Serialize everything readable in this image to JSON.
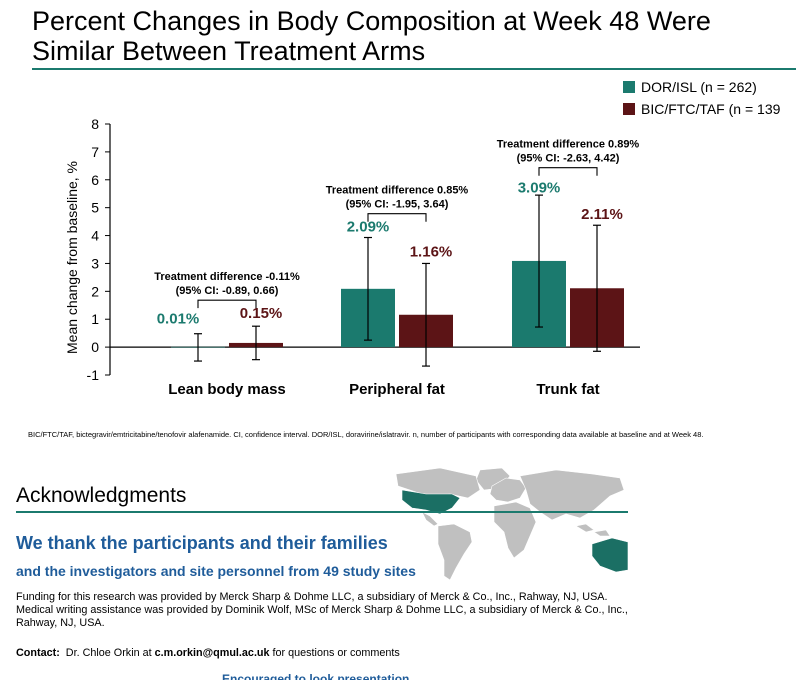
{
  "slide": {
    "title": "Percent Changes in Body Composition at Week 48 Were Similar Between Treatment Arms",
    "footnote": "BIC/FTC/TAF, bictegravir/emtricitabine/tenofovir alafenamide. CI, confidence interval. DOR/ISL, doravirine/islatravir. n, number of participants with corresponding data available at baseline and at Week 48."
  },
  "colors": {
    "teal": "#1b7a6e",
    "maroon": "#5c1416",
    "rule": "#1b7a6e",
    "blue_text": "#1f5c9a",
    "map_land": "#c0c0c0",
    "map_highlight": "#1b6f64"
  },
  "chart_data": {
    "type": "bar",
    "categories": [
      "Lean body mass",
      "Peripheral fat",
      "Trunk fat"
    ],
    "ylabel": "Mean change from baseline, %",
    "xlabel": "",
    "ylim": [
      -1,
      8
    ],
    "yticks": [
      -1,
      0,
      1,
      2,
      3,
      4,
      5,
      6,
      7,
      8
    ],
    "grid": false,
    "legend_position": "top-right",
    "series": [
      {
        "name": "DOR/ISL (n = 262)",
        "color": "#1b7a6e",
        "values": [
          0.01,
          2.09,
          3.09
        ],
        "labels": [
          "0.01%",
          "2.09%",
          "3.09%"
        ],
        "err_low": [
          -0.5,
          0.25,
          0.72
        ],
        "err_high": [
          0.48,
          3.93,
          5.45
        ]
      },
      {
        "name": "BIC/FTC/TAF (n = 139",
        "color": "#5c1416",
        "values": [
          0.15,
          1.16,
          2.11
        ],
        "labels": [
          "0.15%",
          "1.16%",
          "2.11%"
        ],
        "err_low": [
          -0.45,
          -0.68,
          -0.15
        ],
        "err_high": [
          0.75,
          3.0,
          4.37
        ]
      }
    ],
    "annotations": [
      {
        "line1": "Treatment difference -0.11%",
        "line2": "(95% CI: -0.89, 0.66)"
      },
      {
        "line1": "Treatment difference 0.85%",
        "line2": "(95% CI: -1.95, 3.64)"
      },
      {
        "line1": "Treatment difference 0.89%",
        "line2": "(95% CI: -2.63, 4.42)"
      }
    ]
  },
  "acknowledgments": {
    "title": "Acknowledgments",
    "thanks_line1": "We thank the participants and their families",
    "thanks_line2": "and the investigators and site personnel from 49 study sites",
    "funding": "Funding for this research was provided by Merck Sharp & Dohme LLC, a subsidiary of Merck & Co., Inc., Rahway, NJ, USA. Medical writing assistance was provided by Dominik Wolf, MSc of Merck Sharp & Dohme LLC, a subsidiary of Merck & Co., Inc., Rahway, NJ, USA.",
    "contact_label": "Contact:",
    "contact_name": "Dr. Chloe Orkin at",
    "contact_email": "c.m.orkin@qmul.ac.uk",
    "contact_tail": "for questions or comments",
    "cut_off_text": "Encouraged to look presentation"
  }
}
